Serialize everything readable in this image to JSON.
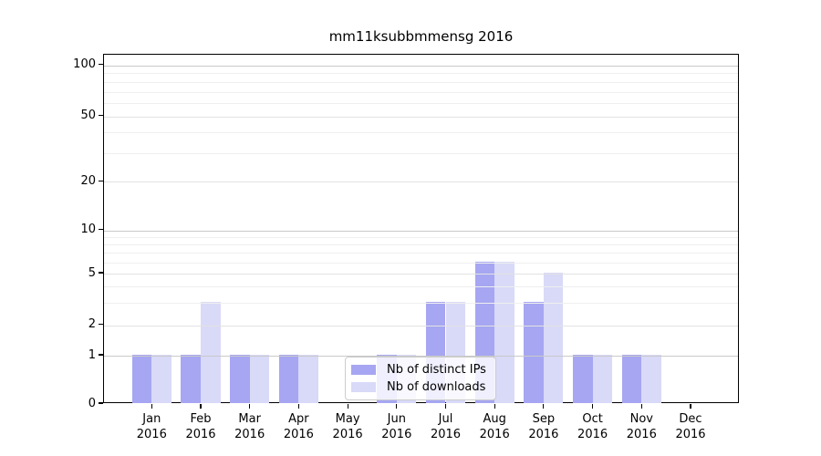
{
  "title": "mm11ksubbmmensg 2016",
  "chart_data": {
    "type": "bar",
    "title": "mm11ksubbmmensg 2016",
    "categories": [
      "Jan",
      "Feb",
      "Mar",
      "Apr",
      "May",
      "Jun",
      "Jul",
      "Aug",
      "Sep",
      "Oct",
      "Nov",
      "Dec"
    ],
    "year": "2016",
    "series": [
      {
        "name": "Nb of distinct IPs",
        "color": "#a6a6f2",
        "values": [
          1,
          1,
          1,
          1,
          0,
          1,
          3,
          6,
          3,
          1,
          1,
          0
        ]
      },
      {
        "name": "Nb of downloads",
        "color": "#d9d9f8",
        "values": [
          1,
          3,
          1,
          1,
          0,
          1,
          3,
          6,
          5,
          1,
          1,
          0
        ]
      }
    ],
    "xlabel": "",
    "ylabel": "",
    "y_ticks": [
      0,
      1,
      2,
      5,
      10,
      20,
      50,
      100
    ],
    "y_tick_labels": [
      "0",
      "1",
      "2",
      "5",
      "10",
      "20",
      "50",
      "100"
    ],
    "y_minor_ticks": [
      3,
      4,
      6,
      7,
      8,
      9,
      30,
      40,
      60,
      70,
      80,
      90
    ],
    "scale": "symlog",
    "ylim": [
      0,
      130
    ],
    "grid": true,
    "legend_position": "lower center"
  }
}
